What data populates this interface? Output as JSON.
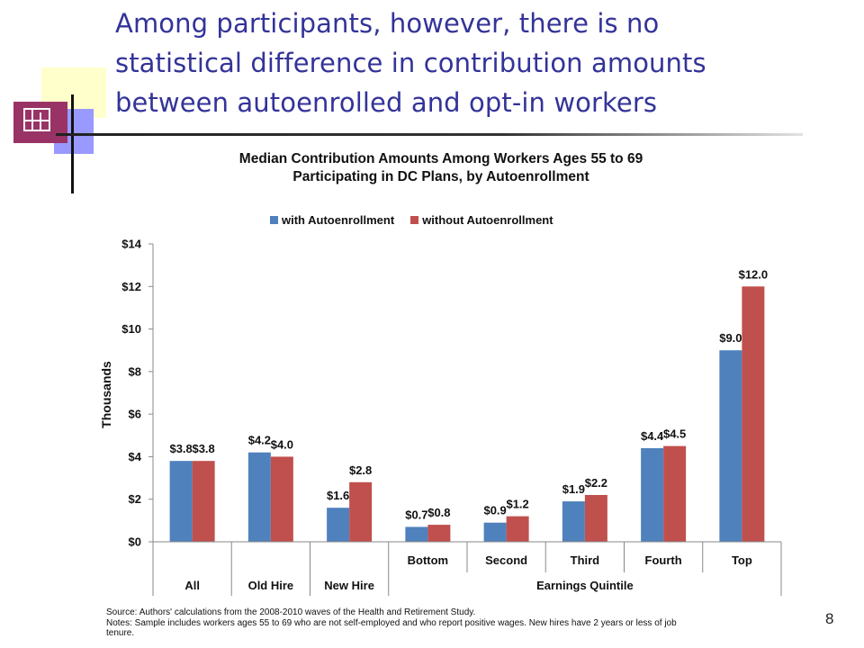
{
  "slide": {
    "title_lines": [
      "Among participants, however, there is no",
      "statistical difference in contribution amounts",
      "between autoenrolled and opt-in workers"
    ],
    "page_number": "8"
  },
  "chart_data": {
    "type": "bar",
    "title_lines": [
      "Median Contribution Amounts Among Workers Ages 55 to 69",
      "Participating in DC Plans, by Autoenrollment"
    ],
    "ylabel": "Thousands",
    "xlabel": "",
    "ylim": [
      0,
      14
    ],
    "yticks": [
      0,
      2,
      4,
      6,
      8,
      10,
      12,
      14
    ],
    "ytick_labels": [
      "$0",
      "$2",
      "$4",
      "$6",
      "$8",
      "$10",
      "$12",
      "$14"
    ],
    "categories": [
      "All",
      "Old Hire",
      "New Hire",
      "Bottom",
      "Second",
      "Third",
      "Fourth",
      "Top"
    ],
    "category_groups": [
      {
        "label": "All",
        "span": 1
      },
      {
        "label": "Old Hire",
        "span": 1
      },
      {
        "label": "New Hire",
        "span": 1
      },
      {
        "label": "Earnings Quintile",
        "span": 5
      }
    ],
    "series": [
      {
        "name": "with Autoenrollment",
        "color": "#4f81bd",
        "values": [
          3.8,
          4.2,
          1.6,
          0.7,
          0.9,
          1.9,
          4.4,
          9.0
        ],
        "labels": [
          "$3.8",
          "$4.2",
          "$1.6",
          "$0.7",
          "$0.9",
          "$1.9",
          "$4.4",
          "$9.0"
        ]
      },
      {
        "name": "without Autoenrollment",
        "color": "#c0504d",
        "values": [
          3.8,
          4.0,
          2.8,
          0.8,
          1.2,
          2.2,
          4.5,
          12.0
        ],
        "labels": [
          "$3.8",
          "$4.0",
          "$2.8",
          "$0.8",
          "$1.2",
          "$2.2",
          "$4.5",
          "$12.0"
        ]
      }
    ],
    "legend_position": "top",
    "grid": false
  },
  "source": {
    "lines": [
      "Source: Authors' calculations from the 2008-2010 waves of the Health and Retirement Study.",
      "Notes: Sample includes workers ages 55 to 69 who are not self-employed and who report positive wages. New hires have 2 years or less of job",
      "tenure."
    ]
  }
}
